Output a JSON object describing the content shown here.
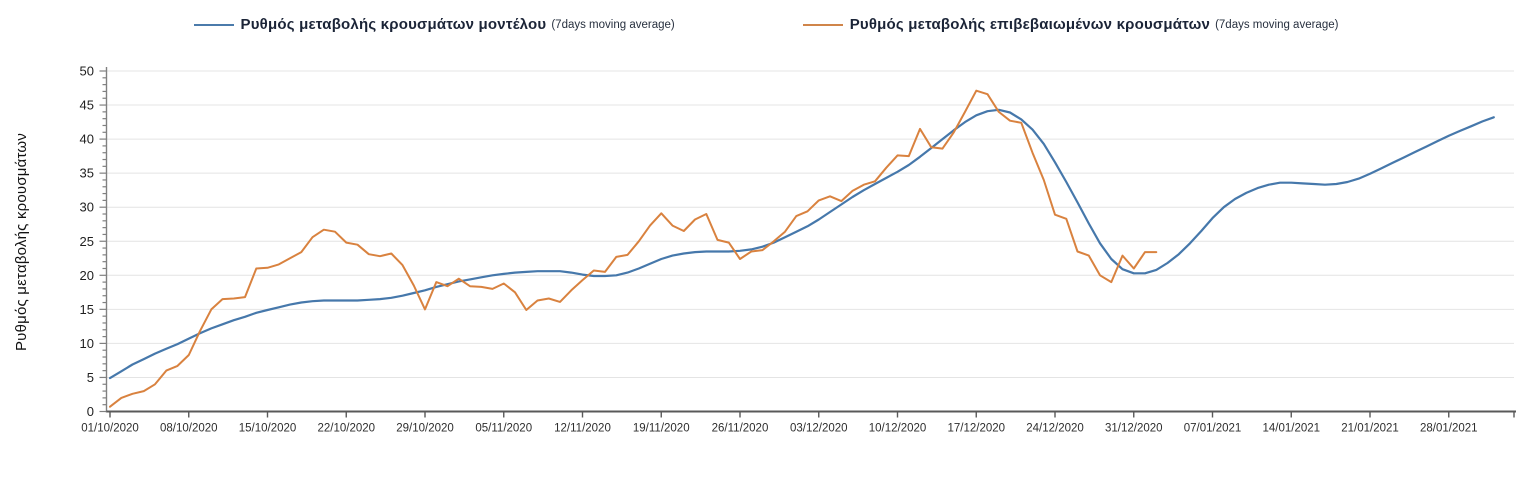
{
  "legend": [
    {
      "label": "Ρυθμός μεταβολής κρουσμάτων μοντέλου",
      "suffix": "(7days moving average)",
      "color": "#4b7bab"
    },
    {
      "label": "Ρυθμός μεταβολής επιβεβαιωμένων κρουσμάτων",
      "suffix": "(7days moving average)",
      "color": "#d0854a"
    }
  ],
  "chart_data": {
    "type": "line",
    "title": "",
    "xlabel": "",
    "ylabel": "Ρυθμός μεταβολής κρουσμάτων",
    "ylim": [
      0,
      50
    ],
    "y_major_step": 5,
    "y_minor_step": 1,
    "grid": "horizontal-major",
    "grid_color": "#e4e4e4",
    "axis_color": "#6e6e6e",
    "legend_position": "top-center",
    "x_start_date": "01/10/2020",
    "x_tick_interval_days": 7,
    "x_tick_labels": [
      "01/10/2020",
      "08/10/2020",
      "15/10/2020",
      "22/10/2020",
      "29/10/2020",
      "05/11/2020",
      "12/11/2020",
      "19/11/2020",
      "26/11/2020",
      "03/12/2020",
      "10/12/2020",
      "17/12/2020",
      "24/12/2020",
      "31/12/2020",
      "07/01/2021",
      "14/01/2021",
      "21/01/2021",
      "28/01/2021"
    ],
    "series": [
      {
        "name": "Ρυθμός μεταβολής κρουσμάτων μοντέλου (7days moving average)",
        "color": "#4678ab",
        "stroke_width": 2.2,
        "start_day": 0,
        "values": [
          4.9,
          5.9,
          6.9,
          7.7,
          8.5,
          9.2,
          9.9,
          10.7,
          11.5,
          12.2,
          12.8,
          13.4,
          13.9,
          14.5,
          14.9,
          15.3,
          15.7,
          16.0,
          16.2,
          16.3,
          16.3,
          16.3,
          16.3,
          16.4,
          16.5,
          16.7,
          17.0,
          17.4,
          17.8,
          18.3,
          18.7,
          19.1,
          19.4,
          19.7,
          20.0,
          20.2,
          20.4,
          20.5,
          20.6,
          20.6,
          20.6,
          20.4,
          20.1,
          19.9,
          19.9,
          20.0,
          20.4,
          21.0,
          21.7,
          22.4,
          22.9,
          23.2,
          23.4,
          23.5,
          23.5,
          23.5,
          23.6,
          23.8,
          24.2,
          24.8,
          25.6,
          26.4,
          27.2,
          28.2,
          29.3,
          30.4,
          31.5,
          32.5,
          33.4,
          34.3,
          35.2,
          36.2,
          37.4,
          38.7,
          40.0,
          41.3,
          42.5,
          43.5,
          44.1,
          44.3,
          43.9,
          42.9,
          41.4,
          39.3,
          36.6,
          33.7,
          30.7,
          27.6,
          24.7,
          22.4,
          20.9,
          20.3,
          20.3,
          20.8,
          21.8,
          23.1,
          24.7,
          26.5,
          28.4,
          30.0,
          31.2,
          32.1,
          32.8,
          33.3,
          33.6,
          33.6,
          33.5,
          33.4,
          33.3,
          33.4,
          33.7,
          34.2,
          34.9,
          35.7,
          36.5,
          37.3,
          38.1,
          38.9,
          39.7,
          40.5,
          41.2,
          41.9,
          42.6,
          43.2
        ]
      },
      {
        "name": "Ρυθμός μεταβολής επιβεβαιωμένων κρουσμάτων (7days moving average)",
        "color": "#d9823f",
        "stroke_width": 2.0,
        "start_day": 0,
        "values": [
          0.7,
          2.0,
          2.6,
          3.0,
          4.0,
          6.0,
          6.7,
          8.3,
          11.8,
          15.0,
          16.5,
          16.6,
          16.8,
          21.0,
          21.1,
          21.6,
          22.5,
          23.4,
          25.6,
          26.7,
          26.4,
          24.8,
          24.5,
          23.1,
          22.8,
          23.2,
          21.5,
          18.5,
          15.0,
          19.0,
          18.4,
          19.5,
          18.4,
          18.3,
          18.0,
          18.8,
          17.5,
          14.9,
          16.3,
          16.6,
          16.1,
          17.8,
          19.3,
          20.7,
          20.5,
          22.7,
          23.0,
          25.0,
          27.3,
          29.1,
          27.3,
          26.5,
          28.2,
          29.0,
          25.2,
          24.8,
          22.4,
          23.5,
          23.7,
          25.0,
          26.4,
          28.7,
          29.4,
          31.0,
          31.6,
          30.9,
          32.4,
          33.3,
          33.8,
          35.8,
          37.6,
          37.5,
          41.5,
          38.8,
          38.6,
          41.0,
          44.0,
          47.1,
          46.6,
          44.0,
          42.7,
          42.4,
          38.0,
          34.0,
          28.9,
          28.3,
          23.5,
          22.9,
          20.0,
          19.0,
          22.9,
          21.0,
          23.4,
          23.4
        ]
      }
    ]
  }
}
